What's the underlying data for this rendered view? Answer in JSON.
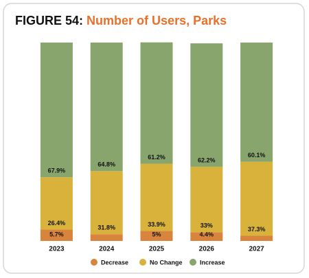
{
  "chart_data": {
    "type": "stacked_bar_100",
    "figure_label": "FIGURE 54:",
    "title": "Number of Users, Parks",
    "title_color": "#e8702a",
    "categories": [
      "2023",
      "2024",
      "2025",
      "2026",
      "2027"
    ],
    "ylim": [
      0,
      100
    ],
    "series": [
      {
        "name": "Decrease",
        "color": "#d9843c",
        "values": [
          5.7,
          3.4,
          5,
          4.4,
          2.6
        ],
        "value_labels": [
          "5.7%",
          null,
          "5%",
          "4.4%",
          null
        ]
      },
      {
        "name": "No Change",
        "color": "#d9b23b",
        "values": [
          26.4,
          31.8,
          33.9,
          33,
          37.3
        ],
        "value_labels": [
          "26.4%",
          "31.8%",
          "33.9%",
          "33%",
          "37.3%"
        ]
      },
      {
        "name": "Increase",
        "color": "#89a56e",
        "values": [
          67.9,
          64.8,
          61.2,
          62.2,
          60.1
        ],
        "value_labels": [
          "67.9%",
          "64.8%",
          "61.2%",
          "62.2%",
          "60.1%"
        ]
      }
    ]
  }
}
